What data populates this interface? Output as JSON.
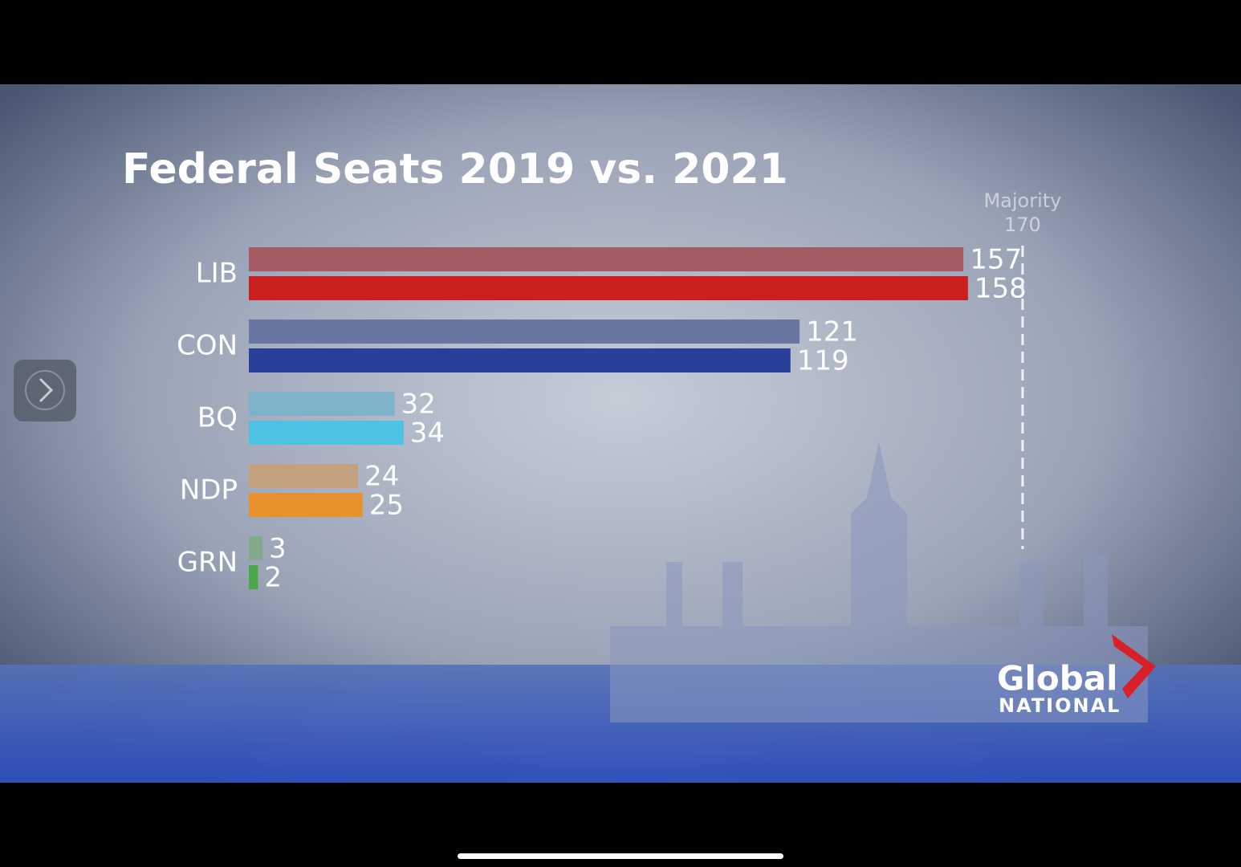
{
  "chart_data": {
    "type": "bar",
    "orientation": "horizontal",
    "title": "Federal Seats 2019 vs. 2021",
    "categories": [
      "LIB",
      "CON",
      "BQ",
      "NDP",
      "GRN"
    ],
    "series": [
      {
        "colors": [
          "#a65a64",
          "#6a76a2",
          "#7fb2c8",
          "#c2a27e",
          "#82aa8a"
        ],
        "values": [
          157,
          121,
          32,
          24,
          3
        ]
      },
      {
        "colors": [
          "#cc2020",
          "#28409a",
          "#4ec2e2",
          "#e8922e",
          "#4aa84a"
        ],
        "values": [
          158,
          119,
          34,
          25,
          2
        ]
      }
    ],
    "xlim": [
      0,
      200
    ],
    "majority": {
      "label": "Majority",
      "value": 170
    }
  },
  "logo": {
    "line1": "Global",
    "line2": "NATIONAL"
  }
}
